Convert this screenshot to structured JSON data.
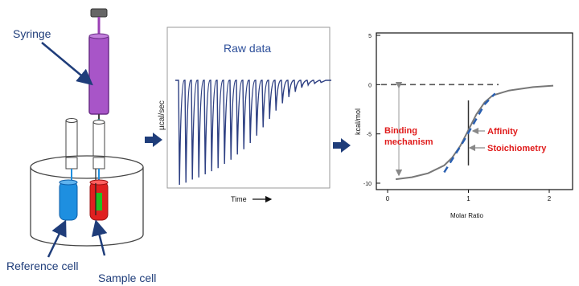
{
  "itc_apparatus": {
    "syringe_label": "Syringe",
    "reference_cell_label": "Reference cell",
    "sample_cell_label": "Sample cell",
    "colors": {
      "label_text": "#1f3d7a",
      "arrow": "#1f3d7a",
      "syringe_body": "#a855c8",
      "reference_cell": "#1e8fe0",
      "sample_cell": "#e02020",
      "sample_core": "#22c022"
    }
  },
  "raw_data_panel": {
    "title": "Raw data",
    "y_label": "µcal/sec",
    "x_label": "Time",
    "trace_color": "#2d3f82",
    "injection_peak_depths": [
      1.0,
      0.98,
      0.95,
      0.93,
      0.9,
      0.87,
      0.84,
      0.8,
      0.76,
      0.71,
      0.66,
      0.6,
      0.53,
      0.45,
      0.37,
      0.29,
      0.22,
      0.16,
      0.11,
      0.07,
      0.045,
      0.03,
      0.02
    ]
  },
  "isotherm_panel": {
    "y_label": "kcal/mol",
    "x_label": "Molar Ratio",
    "y_ticks": [
      "5",
      "0",
      "-5",
      "-10"
    ],
    "x_ticks": [
      "0",
      "1",
      "2"
    ],
    "annotations": {
      "binding_mechanism": "Binding mechanism",
      "affinity": "Affinity",
      "stoichiometry": "Stoichiometry",
      "color": "#e01b1b"
    }
  },
  "chart_data": {
    "type": "line",
    "xlabel": "Molar Ratio",
    "ylabel": "kcal/mol",
    "xlim": [
      0,
      2.3
    ],
    "ylim": [
      -10.5,
      5
    ],
    "series": [
      {
        "x": [
          0.1,
          0.3,
          0.5,
          0.7,
          0.8,
          0.9,
          1.0,
          1.1,
          1.2,
          1.3,
          1.5,
          1.8,
          2.05
        ],
        "y": [
          -9.6,
          -9.4,
          -9.0,
          -8.2,
          -7.4,
          -6.2,
          -4.6,
          -3.0,
          -1.8,
          -1.1,
          -0.6,
          -0.25,
          -0.1
        ]
      }
    ],
    "baseline_y": 0,
    "stoichiometry_x": 1.0
  }
}
